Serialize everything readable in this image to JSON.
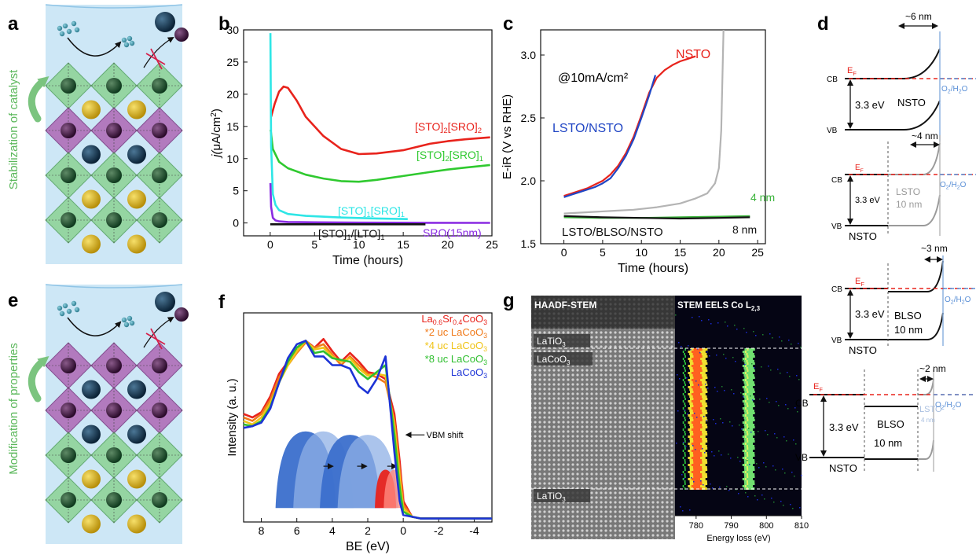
{
  "panels": {
    "a": {
      "letter": "a",
      "side_label": "Stabilization of catalyst"
    },
    "e": {
      "letter": "e",
      "side_label": "Modification of properties"
    },
    "g": {
      "letter": "g",
      "haadf_title": "HAADF-STEM",
      "eels_title": "STEM EELS Co L",
      "eels_title_sub": "2,3",
      "layers": [
        "LaTiO",
        "LaCoO",
        "LaTiO"
      ],
      "layer_sub": "3",
      "xlabel": "Energy loss (eV)",
      "ticks": [
        "780",
        "790",
        "800",
        "810"
      ]
    },
    "d": {
      "letter": "d",
      "widths": [
        "~6 nm",
        "~4 nm",
        "~3 nm",
        "~2 nm"
      ],
      "ef": "E",
      "ef_sub": "F",
      "cb": "CB",
      "vb": "VB",
      "gap": "3.3 eV",
      "redox": "O",
      "redox_sub": "2",
      "redox_tail": "/H",
      "redox_sub2": "2",
      "redox_end": "O",
      "nsto": "NSTO",
      "lsto": "LSTO",
      "blso": "BLSO",
      "ten_nm": "10 nm",
      "four_nm": "4 nm"
    }
  },
  "chart_data": [
    {
      "panel": "b",
      "type": "line",
      "xlabel": "Time (hours)",
      "ylabel_parts": [
        "j(",
        "μ",
        "A/cm",
        "2",
        ")"
      ],
      "xlim": [
        -3,
        25
      ],
      "ylim": [
        -2,
        30
      ],
      "xticks": [
        0,
        5,
        10,
        15,
        20,
        25
      ],
      "yticks": [
        0,
        5,
        10,
        15,
        20,
        25,
        30
      ],
      "series": [
        {
          "name": "[STO]2[SRO]2",
          "label_parts": [
            "[STO]",
            "2",
            "[SRO]",
            "2"
          ],
          "color": "#e8231c",
          "x": [
            0.1,
            0.5,
            1,
            1.5,
            2,
            3,
            4,
            6,
            8,
            10,
            12,
            15,
            18,
            20,
            22,
            24.8
          ],
          "y": [
            16.5,
            18.5,
            20.4,
            21.2,
            21,
            19,
            16.5,
            13.5,
            11.5,
            10.7,
            10.8,
            11.3,
            12.3,
            12.7,
            13.0,
            13.3
          ]
        },
        {
          "name": "[STO]2[SRO]1",
          "label_parts": [
            "[STO]",
            "2",
            "[SRO]",
            "1"
          ],
          "color": "#2fc92f",
          "x": [
            0.05,
            0.3,
            1,
            2,
            4,
            6,
            8,
            10,
            12,
            15,
            18,
            20,
            22,
            24.8
          ],
          "y": [
            14.5,
            11.5,
            9.5,
            8.5,
            7.5,
            6.9,
            6.5,
            6.4,
            6.7,
            7.3,
            7.9,
            8.3,
            8.6,
            9.0
          ]
        },
        {
          "name": "[STO]1[SRO]1",
          "label_parts": [
            "[STO]",
            "1",
            "[SRO]",
            "1"
          ],
          "color": "#2ee6e6",
          "x": [
            0.02,
            0.1,
            0.3,
            0.6,
            1,
            2,
            4,
            8,
            12,
            15.5
          ],
          "y": [
            29.5,
            12,
            4.5,
            2.8,
            2.0,
            1.4,
            1.1,
            0.85,
            0.7,
            0.6
          ]
        },
        {
          "name": "SRO(15nm)",
          "label_parts": [
            "SRO(15nm)"
          ],
          "color": "#8a2be2",
          "x": [
            0.02,
            0.1,
            0.3,
            0.6,
            1,
            2,
            5,
            10,
            17.5,
            24.8
          ],
          "y": [
            6.2,
            2.5,
            0.8,
            0.4,
            0.25,
            0.15,
            0.1,
            0.05,
            0.03,
            0.02
          ]
        },
        {
          "name": "[STO]1/[LTO]1",
          "label_parts": [
            "[STO]",
            "1",
            "/[LTO]",
            "1"
          ],
          "color": "#111111",
          "x": [
            0,
            17.5
          ],
          "y": [
            -0.2,
            -0.2
          ]
        }
      ]
    },
    {
      "panel": "c",
      "type": "line",
      "xlabel": "Time (hours)",
      "ylabel": "E-iR (V vs RHE)",
      "annotation": "@10mA/cm²",
      "xlim": [
        -3,
        26
      ],
      "ylim": [
        1.5,
        3.2
      ],
      "xticks": [
        0,
        5,
        10,
        15,
        20,
        25
      ],
      "yticks": [
        1.5,
        2.0,
        2.5,
        3.0
      ],
      "series": [
        {
          "name": "NSTO",
          "label": "NSTO",
          "color": "#e8231c",
          "x": [
            0,
            1,
            2,
            3,
            4,
            5,
            6,
            7,
            8,
            9,
            10,
            11,
            12,
            13,
            14,
            15,
            16,
            17
          ],
          "y": [
            1.88,
            1.9,
            1.92,
            1.94,
            1.97,
            2.0,
            2.05,
            2.12,
            2.22,
            2.35,
            2.52,
            2.7,
            2.82,
            2.88,
            2.92,
            2.95,
            2.97,
            2.99
          ]
        },
        {
          "name": "LSTO/NSTO",
          "label": "LSTO/NSTO",
          "color": "#2146c4",
          "x": [
            0,
            1,
            2,
            3,
            4,
            5,
            6,
            7,
            8,
            9,
            10,
            11,
            11.8
          ],
          "y": [
            1.87,
            1.89,
            1.91,
            1.93,
            1.95,
            1.98,
            2.02,
            2.1,
            2.2,
            2.33,
            2.5,
            2.68,
            2.84
          ]
        },
        {
          "name": "LSTO/BLSO/NSTO",
          "label": "LSTO/BLSO/NSTO",
          "color": "#b4b4b4",
          "x": [
            0,
            3,
            6,
            9,
            12,
            15,
            17,
            18.5,
            19.5,
            20,
            20.3,
            20.6
          ],
          "y": [
            1.74,
            1.75,
            1.76,
            1.77,
            1.79,
            1.82,
            1.86,
            1.9,
            1.98,
            2.1,
            2.4,
            3.2
          ]
        },
        {
          "name": "4 nm",
          "label": "4 nm",
          "color": "#3cb43c",
          "x": [
            0,
            5,
            10,
            15,
            20,
            24
          ],
          "y": [
            1.71,
            1.705,
            1.705,
            1.71,
            1.715,
            1.72
          ]
        },
        {
          "name": "8 nm",
          "label": "8 nm",
          "color": "#111111",
          "x": [
            0,
            5,
            10,
            15,
            20,
            24
          ],
          "y": [
            1.72,
            1.71,
            1.705,
            1.7,
            1.705,
            1.71
          ]
        }
      ]
    },
    {
      "panel": "f",
      "type": "line",
      "xlabel": "BE (eV)",
      "ylabel": "Intensity (a. u.)",
      "xlim": [
        9,
        -5
      ],
      "ylim": [
        0,
        1.2
      ],
      "xticks": [
        8,
        6,
        4,
        2,
        0,
        -2,
        -4
      ],
      "annotation": "VBM shift",
      "series": [
        {
          "name": "La0.6Sr0.4CoO3",
          "label_parts": [
            "La",
            "0.6",
            "Sr",
            "0.4",
            "CoO",
            "3"
          ],
          "color": "#e8231c",
          "x": [
            9,
            8.5,
            8,
            7.5,
            7,
            6.5,
            6,
            5.5,
            5,
            4.5,
            4,
            3.5,
            3,
            2.5,
            2,
            1.5,
            1,
            0.5,
            0.2,
            0,
            -0.5,
            -1,
            -2,
            -3,
            -4,
            -5
          ],
          "y": [
            0.62,
            0.6,
            0.63,
            0.72,
            0.85,
            0.92,
            0.98,
            1.04,
            1.0,
            1.05,
            0.98,
            0.92,
            0.97,
            0.92,
            0.86,
            0.85,
            0.82,
            0.62,
            0.35,
            0.12,
            0.03,
            0.02,
            0.02,
            0.02,
            0.02,
            0.02
          ]
        },
        {
          "name": "*2 uc LaCoO3",
          "label_parts": [
            "*2 uc LaCoO",
            "3"
          ],
          "color": "#f07a1a",
          "x": [
            9,
            8.5,
            8,
            7.5,
            7,
            6.5,
            6,
            5.5,
            5,
            4.5,
            4,
            3.5,
            3,
            2.5,
            2,
            1.5,
            1,
            0.5,
            0.2,
            0,
            -0.5,
            -1,
            -2,
            -3,
            -4,
            -5
          ],
          "y": [
            0.6,
            0.58,
            0.62,
            0.7,
            0.83,
            0.9,
            0.97,
            1.03,
            1.0,
            1.02,
            0.96,
            0.9,
            0.95,
            0.9,
            0.85,
            0.83,
            0.8,
            0.58,
            0.3,
            0.1,
            0.03,
            0.02,
            0.02,
            0.02,
            0.02,
            0.02
          ]
        },
        {
          "name": "*4 uc LaCoO3",
          "label_parts": [
            "*4 uc LaCoO",
            "3"
          ],
          "color": "#f0c419",
          "x": [
            9,
            8.5,
            8,
            7.5,
            7,
            6.5,
            6,
            5.5,
            5,
            4.5,
            4,
            3.5,
            3,
            2.5,
            2,
            1.5,
            1,
            0.5,
            0.2,
            0,
            -0.5,
            -1,
            -2,
            -3,
            -4,
            -5
          ],
          "y": [
            0.58,
            0.56,
            0.6,
            0.68,
            0.8,
            0.9,
            0.98,
            1.04,
            0.99,
            1.0,
            0.95,
            0.92,
            0.94,
            0.88,
            0.84,
            0.85,
            0.84,
            0.55,
            0.26,
            0.08,
            0.03,
            0.02,
            0.02,
            0.02,
            0.02,
            0.02
          ]
        },
        {
          "name": "*8 uc LaCoO3",
          "label_parts": [
            "*8 uc LaCoO",
            "3"
          ],
          "color": "#2fbf2f",
          "x": [
            9,
            8.5,
            8,
            7.5,
            7,
            6.5,
            6,
            5.5,
            5,
            4.5,
            4,
            3.5,
            3,
            2.5,
            2,
            1.5,
            1,
            0.5,
            0.2,
            0,
            -0.5,
            -1,
            -2,
            -3,
            -4,
            -5
          ],
          "y": [
            0.56,
            0.55,
            0.58,
            0.66,
            0.8,
            0.92,
            1.0,
            1.04,
            0.97,
            0.98,
            0.94,
            0.93,
            0.92,
            0.86,
            0.82,
            0.86,
            0.9,
            0.5,
            0.2,
            0.06,
            0.03,
            0.02,
            0.02,
            0.02,
            0.02,
            0.02
          ]
        },
        {
          "name": "LaCoO3",
          "label_parts": [
            "LaCoO",
            "3"
          ],
          "color": "#1c33d6",
          "x": [
            9,
            8.5,
            8,
            7.5,
            7,
            6.5,
            6,
            5.5,
            5,
            4.5,
            4,
            3.5,
            3,
            2.5,
            2,
            1.5,
            1,
            0.5,
            0.2,
            0,
            -0.5,
            -1,
            -2,
            -3,
            -4,
            -5
          ],
          "y": [
            0.54,
            0.55,
            0.57,
            0.65,
            0.8,
            0.94,
            1.02,
            1.04,
            0.95,
            0.95,
            0.9,
            0.9,
            0.88,
            0.78,
            0.74,
            0.82,
            0.95,
            0.4,
            0.12,
            0.04,
            0.03,
            0.02,
            0.02,
            0.02,
            0.02,
            0.02
          ]
        }
      ]
    }
  ]
}
